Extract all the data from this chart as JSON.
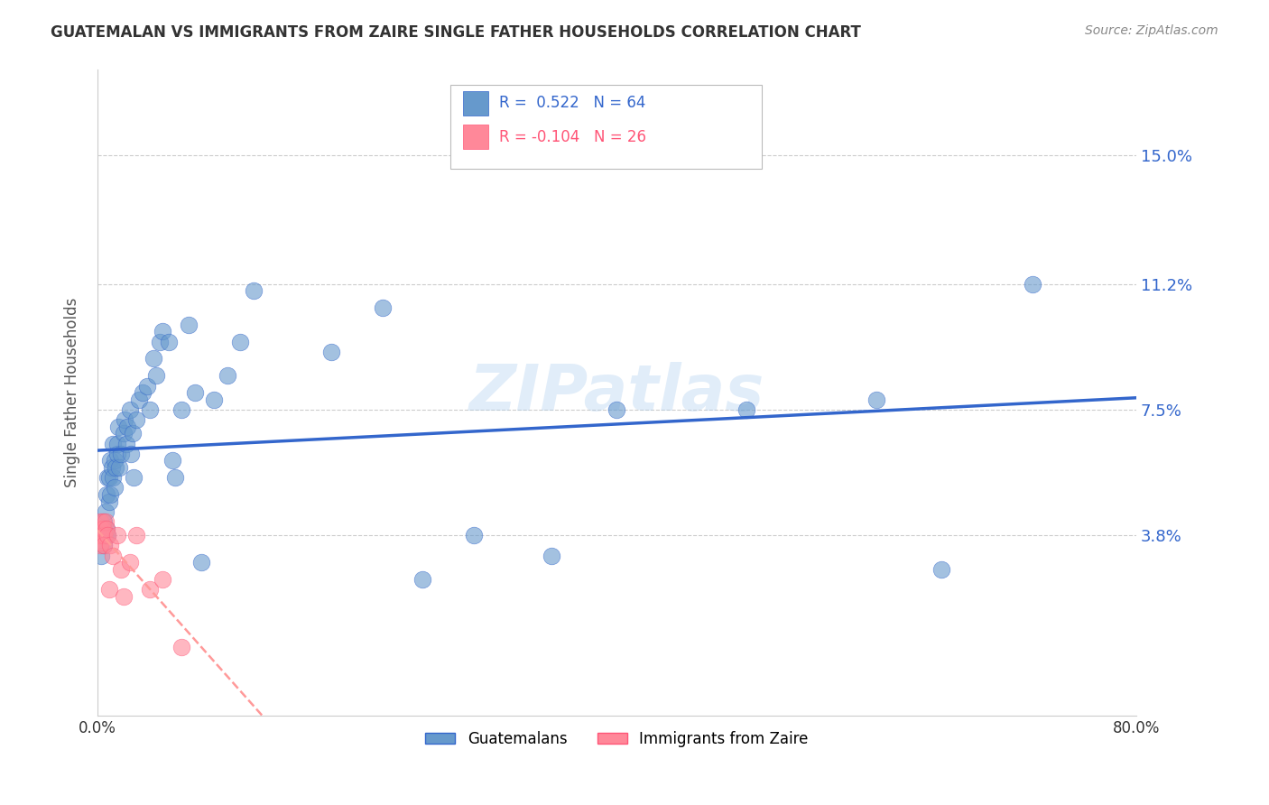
{
  "title": "GUATEMALAN VS IMMIGRANTS FROM ZAIRE SINGLE FATHER HOUSEHOLDS CORRELATION CHART",
  "source": "Source: ZipAtlas.com",
  "ylabel": "Single Father Households",
  "ytick_labels": [
    "15.0%",
    "11.2%",
    "7.5%",
    "3.8%"
  ],
  "ytick_values": [
    0.15,
    0.112,
    0.075,
    0.038
  ],
  "xlim": [
    0.0,
    0.8
  ],
  "ylim": [
    -0.015,
    0.175
  ],
  "watermark": "ZIPatlas",
  "blue_color": "#6699CC",
  "pink_color": "#FF8899",
  "line_blue": "#3366CC",
  "line_pink": "#FF9999",
  "guatemalan_x": [
    0.002,
    0.003,
    0.004,
    0.005,
    0.005,
    0.006,
    0.006,
    0.007,
    0.007,
    0.008,
    0.008,
    0.009,
    0.009,
    0.01,
    0.01,
    0.011,
    0.012,
    0.012,
    0.013,
    0.013,
    0.014,
    0.015,
    0.015,
    0.016,
    0.017,
    0.018,
    0.02,
    0.021,
    0.022,
    0.023,
    0.025,
    0.026,
    0.027,
    0.028,
    0.03,
    0.032,
    0.035,
    0.038,
    0.04,
    0.043,
    0.045,
    0.048,
    0.05,
    0.055,
    0.058,
    0.06,
    0.065,
    0.07,
    0.075,
    0.08,
    0.09,
    0.1,
    0.11,
    0.12,
    0.18,
    0.22,
    0.25,
    0.29,
    0.35,
    0.4,
    0.5,
    0.6,
    0.65,
    0.72
  ],
  "guatemalan_y": [
    0.038,
    0.032,
    0.04,
    0.035,
    0.042,
    0.038,
    0.045,
    0.04,
    0.05,
    0.055,
    0.038,
    0.048,
    0.055,
    0.06,
    0.05,
    0.058,
    0.065,
    0.055,
    0.06,
    0.052,
    0.058,
    0.062,
    0.065,
    0.07,
    0.058,
    0.062,
    0.068,
    0.072,
    0.065,
    0.07,
    0.075,
    0.062,
    0.068,
    0.055,
    0.072,
    0.078,
    0.08,
    0.082,
    0.075,
    0.09,
    0.085,
    0.095,
    0.098,
    0.095,
    0.06,
    0.055,
    0.075,
    0.1,
    0.08,
    0.03,
    0.078,
    0.085,
    0.095,
    0.11,
    0.092,
    0.105,
    0.025,
    0.038,
    0.032,
    0.075,
    0.075,
    0.078,
    0.028,
    0.112
  ],
  "zaire_x": [
    0.001,
    0.001,
    0.002,
    0.002,
    0.002,
    0.003,
    0.003,
    0.003,
    0.004,
    0.004,
    0.005,
    0.005,
    0.006,
    0.007,
    0.008,
    0.009,
    0.01,
    0.012,
    0.015,
    0.018,
    0.02,
    0.025,
    0.03,
    0.04,
    0.05,
    0.065
  ],
  "zaire_y": [
    0.038,
    0.04,
    0.035,
    0.042,
    0.038,
    0.04,
    0.038,
    0.036,
    0.042,
    0.04,
    0.038,
    0.035,
    0.042,
    0.04,
    0.038,
    0.022,
    0.035,
    0.032,
    0.038,
    0.028,
    0.02,
    0.03,
    0.038,
    0.022,
    0.025,
    0.005
  ]
}
